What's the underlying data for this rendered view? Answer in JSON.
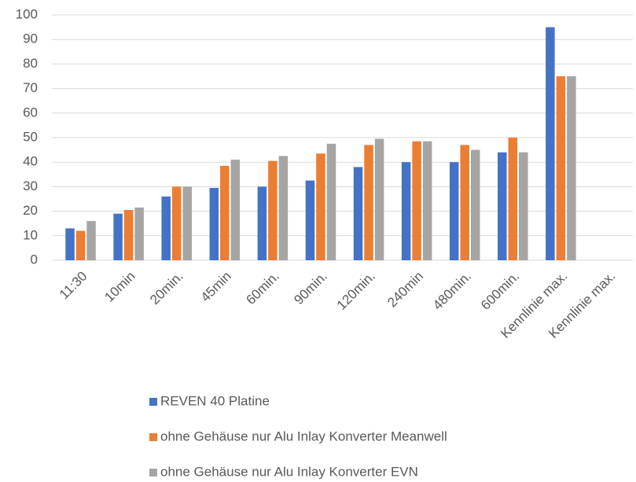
{
  "chart_data": {
    "type": "bar",
    "categories": [
      "11:30",
      "10min",
      "20min.",
      "45min",
      "60min.",
      "90min.",
      "120min.",
      "240min",
      "480min.",
      "600min.",
      "Kennlinie max.",
      "Kennlinie max."
    ],
    "series": [
      {
        "name": "REVEN 40 Platine",
        "color": "#4472c4",
        "values": [
          13,
          19,
          26,
          29.5,
          30,
          32.5,
          38,
          40,
          40,
          44,
          95,
          null
        ]
      },
      {
        "name": "ohne Gehäuse nur Alu Inlay Konverter Meanwell",
        "color": "#ed7d31",
        "values": [
          12,
          20.5,
          30,
          38.5,
          40.5,
          43.5,
          47,
          48.5,
          47,
          50,
          75,
          null
        ]
      },
      {
        "name": "ohne Gehäuse nur Alu Inlay Konverter EVN",
        "color": "#a5a5a5",
        "values": [
          16,
          21.5,
          30,
          41,
          42.5,
          47.5,
          49.5,
          48.5,
          45,
          44,
          75,
          null
        ]
      }
    ],
    "ylim": [
      0,
      100
    ],
    "yticks": [
      0,
      10,
      20,
      30,
      40,
      50,
      60,
      70,
      80,
      90,
      100
    ],
    "grid": true,
    "legend": "bottom"
  }
}
